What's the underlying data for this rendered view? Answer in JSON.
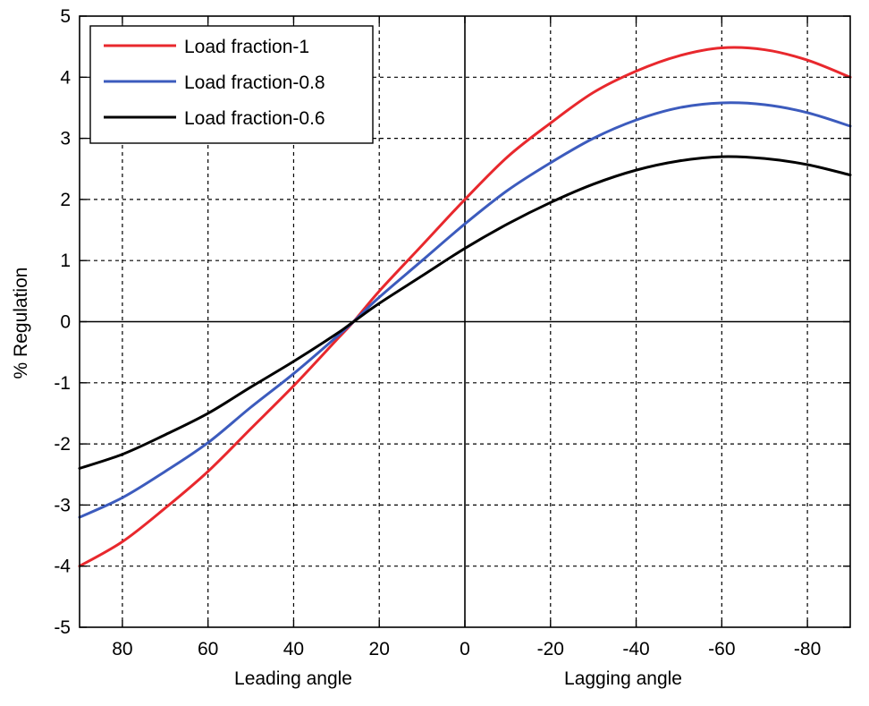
{
  "chart_data": {
    "type": "line",
    "title": "",
    "ylabel": "% Regulation",
    "xlabel_left": "Leading angle",
    "xlabel_right": "Lagging angle",
    "x_unit": "phase angle (leading positive, lagging negative)",
    "x_direction": "decreasing",
    "xlim": [
      90,
      -90
    ],
    "ylim": [
      -5,
      5
    ],
    "x_ticks": [
      80,
      60,
      40,
      20,
      0,
      -20,
      -40,
      -60,
      -80
    ],
    "x_tick_labels": [
      "80",
      "60",
      "40",
      "20",
      "0",
      "-20",
      "-40",
      "-60",
      "-80"
    ],
    "y_ticks": [
      5,
      4,
      3,
      2,
      1,
      0,
      -1,
      -2,
      -3,
      -4,
      -5
    ],
    "y_tick_labels": [
      "5",
      "4",
      "3",
      "2",
      "1",
      "0",
      "-1",
      "-2",
      "-3",
      "-4",
      "-5"
    ],
    "grid": true,
    "grid_style": "dashed",
    "zero_lines": true,
    "legend_position": "top-left",
    "series": [
      {
        "name": "Load fraction-1",
        "color": "#e8282d",
        "x": [
          90,
          80,
          70,
          60,
          50,
          40,
          30,
          26,
          20,
          10,
          0,
          -10,
          -20,
          -30,
          -40,
          -50,
          -60,
          -70,
          -80,
          -90
        ],
        "y": [
          -4.0,
          -3.6,
          -3.05,
          -2.45,
          -1.75,
          -1.05,
          -0.3,
          0.0,
          0.5,
          1.25,
          2.0,
          2.7,
          3.25,
          3.75,
          4.1,
          4.35,
          4.48,
          4.45,
          4.28,
          4.0
        ]
      },
      {
        "name": "Load fraction-0.8",
        "color": "#3c5bbd",
        "x": [
          90,
          80,
          70,
          60,
          50,
          40,
          30,
          26,
          20,
          10,
          0,
          -10,
          -20,
          -30,
          -40,
          -50,
          -60,
          -70,
          -80,
          -90
        ],
        "y": [
          -3.2,
          -2.88,
          -2.45,
          -1.98,
          -1.4,
          -0.85,
          -0.25,
          0.0,
          0.4,
          1.0,
          1.6,
          2.15,
          2.6,
          3.0,
          3.3,
          3.5,
          3.58,
          3.55,
          3.42,
          3.2
        ]
      },
      {
        "name": "Load fraction-0.6",
        "color": "#000000",
        "x": [
          90,
          80,
          70,
          60,
          50,
          40,
          30,
          26,
          20,
          10,
          0,
          -10,
          -20,
          -30,
          -40,
          -50,
          -60,
          -70,
          -80,
          -90
        ],
        "y": [
          -2.4,
          -2.17,
          -1.85,
          -1.5,
          -1.07,
          -0.65,
          -0.2,
          0.0,
          0.3,
          0.75,
          1.2,
          1.6,
          1.95,
          2.25,
          2.48,
          2.63,
          2.7,
          2.67,
          2.57,
          2.4
        ]
      }
    ]
  }
}
